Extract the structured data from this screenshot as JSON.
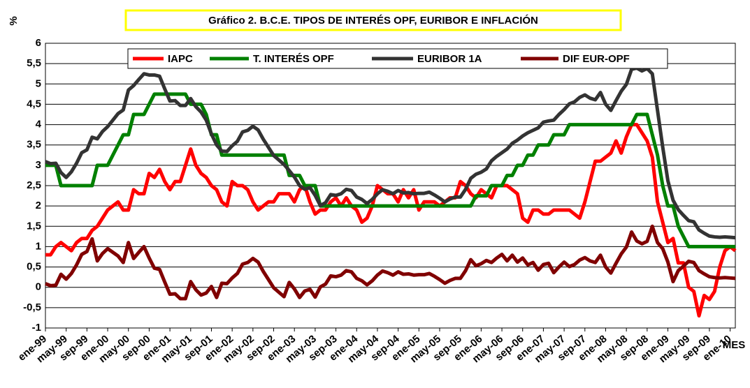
{
  "chart_data": {
    "type": "line",
    "title": "Gráfico 2. B.C.E. TIPOS DE INTERÉS OPF, EURIBOR E INFLACIÓN",
    "y_label": "%",
    "x_label": "MES",
    "ylim": [
      -1,
      6
    ],
    "yticks": [
      -1,
      {
        "value": -0.5,
        "label": "-0,5"
      },
      0,
      {
        "value": 0.5,
        "label": "0,5"
      },
      1,
      {
        "value": 1.5,
        "label": "1,5"
      },
      2,
      {
        "value": 2.5,
        "label": "2,5"
      },
      3,
      {
        "value": 3.5,
        "label": "3,5"
      },
      4,
      {
        "value": 4.5,
        "label": "4,5"
      },
      5,
      {
        "value": 5.5,
        "label": "5,5"
      },
      6
    ],
    "grid": true,
    "legend": "top",
    "categories": [
      "ene-99",
      null,
      null,
      null,
      "may-99",
      null,
      null,
      null,
      "sep-99",
      null,
      null,
      null,
      "ene-00",
      null,
      null,
      null,
      "may-00",
      null,
      null,
      null,
      "sep-00",
      null,
      null,
      null,
      "ene-01",
      null,
      null,
      null,
      "may-01",
      null,
      null,
      null,
      "sep-01",
      null,
      null,
      null,
      "ene-02",
      null,
      null,
      null,
      "may-02",
      null,
      null,
      null,
      "sep-02",
      null,
      null,
      null,
      "ene-03",
      null,
      null,
      null,
      "may-03",
      null,
      null,
      null,
      "sep-03",
      null,
      null,
      null,
      "ene-04",
      null,
      null,
      null,
      "may-04",
      null,
      null,
      null,
      "sep-04",
      null,
      null,
      null,
      "ene-05",
      null,
      null,
      null,
      "may-05",
      null,
      null,
      null,
      "sep-05",
      null,
      null,
      null,
      "ene-06",
      null,
      null,
      null,
      "may-06",
      null,
      null,
      null,
      "sep-06",
      null,
      null,
      null,
      "ene-07",
      null,
      null,
      null,
      "may-07",
      null,
      null,
      null,
      "sep-07",
      null,
      null,
      null,
      "ene-08",
      null,
      null,
      null,
      "may-08",
      null,
      null,
      null,
      "sep-08",
      null,
      null,
      null,
      "ene-09",
      null,
      null,
      null,
      "may-09",
      null,
      null,
      null,
      "sep-09",
      null,
      null,
      null,
      "ene-10",
      null
    ],
    "series": [
      {
        "name": "IAPC",
        "color": "#ff0000",
        "values": [
          0.8,
          0.8,
          1.0,
          1.1,
          1.0,
          0.9,
          1.1,
          1.2,
          1.2,
          1.4,
          1.5,
          1.7,
          1.9,
          2.0,
          2.1,
          1.9,
          1.9,
          2.4,
          2.3,
          2.3,
          2.8,
          2.7,
          2.9,
          2.6,
          2.4,
          2.6,
          2.6,
          3.0,
          3.4,
          3.0,
          2.8,
          2.7,
          2.5,
          2.4,
          2.1,
          2.0,
          2.6,
          2.5,
          2.5,
          2.4,
          2.1,
          1.9,
          2.0,
          2.1,
          2.1,
          2.3,
          2.3,
          2.3,
          2.1,
          2.4,
          2.5,
          2.1,
          1.8,
          1.9,
          1.9,
          2.1,
          2.2,
          2.0,
          2.2,
          2.0,
          1.9,
          1.6,
          1.7,
          2.0,
          2.5,
          2.4,
          2.3,
          2.3,
          2.1,
          2.4,
          2.2,
          2.4,
          1.9,
          2.1,
          2.1,
          2.1,
          2.0,
          2.1,
          2.2,
          2.2,
          2.6,
          2.5,
          2.3,
          2.2,
          2.4,
          2.3,
          2.2,
          2.5,
          2.5,
          2.5,
          2.4,
          2.3,
          1.7,
          1.6,
          1.9,
          1.9,
          1.8,
          1.8,
          1.9,
          1.9,
          1.9,
          1.9,
          1.8,
          1.7,
          2.1,
          2.6,
          3.1,
          3.1,
          3.2,
          3.3,
          3.6,
          3.3,
          3.7,
          4.0,
          4.0,
          3.8,
          3.6,
          3.2,
          2.1,
          1.6,
          1.1,
          1.2,
          0.6,
          0.6,
          0.0,
          -0.1,
          -0.7,
          -0.2,
          -0.3,
          -0.1,
          0.5,
          0.9,
          1.0,
          0.9
        ]
      },
      {
        "name": "T. INTERÉS OPF",
        "color": "#008000",
        "values": [
          3.0,
          3.0,
          3.0,
          2.5,
          2.5,
          2.5,
          2.5,
          2.5,
          2.5,
          2.5,
          3.0,
          3.0,
          3.0,
          3.25,
          3.5,
          3.75,
          3.75,
          4.25,
          4.25,
          4.25,
          4.5,
          4.75,
          4.75,
          4.75,
          4.75,
          4.75,
          4.75,
          4.75,
          4.5,
          4.5,
          4.5,
          4.25,
          3.75,
          3.75,
          3.25,
          3.25,
          3.25,
          3.25,
          3.25,
          3.25,
          3.25,
          3.25,
          3.25,
          3.25,
          3.25,
          3.25,
          3.25,
          2.75,
          2.75,
          2.75,
          2.5,
          2.5,
          2.5,
          2.0,
          2.0,
          2.0,
          2.0,
          2.0,
          2.0,
          2.0,
          2.0,
          2.0,
          2.0,
          2.0,
          2.0,
          2.0,
          2.0,
          2.0,
          2.0,
          2.0,
          2.0,
          2.0,
          2.0,
          2.0,
          2.0,
          2.0,
          2.0,
          2.0,
          2.0,
          2.0,
          2.0,
          2.0,
          2.0,
          2.25,
          2.25,
          2.25,
          2.5,
          2.5,
          2.5,
          2.75,
          2.75,
          3.0,
          3.0,
          3.25,
          3.25,
          3.5,
          3.5,
          3.5,
          3.75,
          3.75,
          3.75,
          4.0,
          4.0,
          4.0,
          4.0,
          4.0,
          4.0,
          4.0,
          4.0,
          4.0,
          4.0,
          4.0,
          4.0,
          4.0,
          4.25,
          4.25,
          4.25,
          3.75,
          3.25,
          2.5,
          2.0,
          2.0,
          1.5,
          1.25,
          1.0,
          1.0,
          1.0,
          1.0,
          1.0,
          1.0,
          1.0,
          1.0,
          1.0,
          1.0
        ]
      },
      {
        "name": "EURIBOR 1A",
        "color": "#333333",
        "values": [
          3.09,
          3.04,
          3.05,
          2.82,
          2.7,
          2.84,
          3.05,
          3.31,
          3.38,
          3.69,
          3.65,
          3.83,
          3.95,
          4.11,
          4.27,
          4.36,
          4.85,
          4.96,
          5.11,
          5.25,
          5.22,
          5.22,
          5.19,
          4.88,
          4.58,
          4.59,
          4.47,
          4.47,
          4.64,
          4.44,
          4.31,
          4.11,
          3.77,
          3.5,
          3.35,
          3.34,
          3.48,
          3.59,
          3.82,
          3.86,
          3.96,
          3.87,
          3.64,
          3.44,
          3.24,
          3.13,
          3.02,
          2.87,
          2.71,
          2.5,
          2.41,
          2.45,
          2.26,
          2.01,
          2.08,
          2.28,
          2.26,
          2.3,
          2.41,
          2.38,
          2.22,
          2.16,
          2.06,
          2.16,
          2.3,
          2.4,
          2.36,
          2.3,
          2.38,
          2.32,
          2.33,
          2.3,
          2.31,
          2.31,
          2.34,
          2.27,
          2.19,
          2.1,
          2.17,
          2.22,
          2.22,
          2.41,
          2.68,
          2.78,
          2.83,
          2.91,
          3.11,
          3.22,
          3.31,
          3.4,
          3.54,
          3.62,
          3.72,
          3.8,
          3.86,
          3.92,
          4.06,
          4.09,
          4.11,
          4.25,
          4.37,
          4.51,
          4.56,
          4.67,
          4.73,
          4.65,
          4.61,
          4.79,
          4.5,
          4.35,
          4.59,
          4.82,
          4.99,
          5.36,
          5.39,
          5.32,
          5.38,
          5.25,
          4.35,
          3.45,
          2.62,
          2.14,
          1.91,
          1.77,
          1.64,
          1.61,
          1.41,
          1.33,
          1.26,
          1.24,
          1.23,
          1.24,
          1.23,
          1.22
        ]
      },
      {
        "name": "DIF EUR-OPF",
        "color": "#800000",
        "values": [
          0.09,
          0.04,
          0.05,
          0.32,
          0.2,
          0.34,
          0.55,
          0.81,
          0.88,
          1.19,
          0.65,
          0.83,
          0.95,
          0.86,
          0.77,
          0.61,
          1.1,
          0.71,
          0.86,
          1.0,
          0.72,
          0.47,
          0.44,
          0.13,
          -0.17,
          -0.16,
          -0.28,
          -0.28,
          0.14,
          -0.06,
          -0.19,
          -0.14,
          0.02,
          -0.25,
          0.1,
          0.09,
          0.23,
          0.34,
          0.57,
          0.61,
          0.71,
          0.62,
          0.39,
          0.19,
          -0.01,
          -0.12,
          -0.23,
          0.12,
          -0.04,
          -0.25,
          -0.09,
          -0.05,
          -0.24,
          0.01,
          0.08,
          0.28,
          0.26,
          0.3,
          0.41,
          0.38,
          0.22,
          0.16,
          0.06,
          0.16,
          0.3,
          0.4,
          0.36,
          0.3,
          0.38,
          0.32,
          0.33,
          0.3,
          0.31,
          0.31,
          0.34,
          0.27,
          0.19,
          0.1,
          0.17,
          0.22,
          0.22,
          0.41,
          0.68,
          0.53,
          0.58,
          0.66,
          0.61,
          0.72,
          0.81,
          0.65,
          0.79,
          0.62,
          0.72,
          0.55,
          0.61,
          0.42,
          0.56,
          0.59,
          0.36,
          0.5,
          0.62,
          0.51,
          0.56,
          0.67,
          0.73,
          0.65,
          0.61,
          0.79,
          0.5,
          0.35,
          0.59,
          0.82,
          0.99,
          1.36,
          1.14,
          1.07,
          1.13,
          1.5,
          1.1,
          0.95,
          0.62,
          0.14,
          0.41,
          0.52,
          0.64,
          0.61,
          0.41,
          0.33,
          0.26,
          0.24,
          0.23,
          0.24,
          0.23,
          0.22
        ]
      }
    ]
  }
}
